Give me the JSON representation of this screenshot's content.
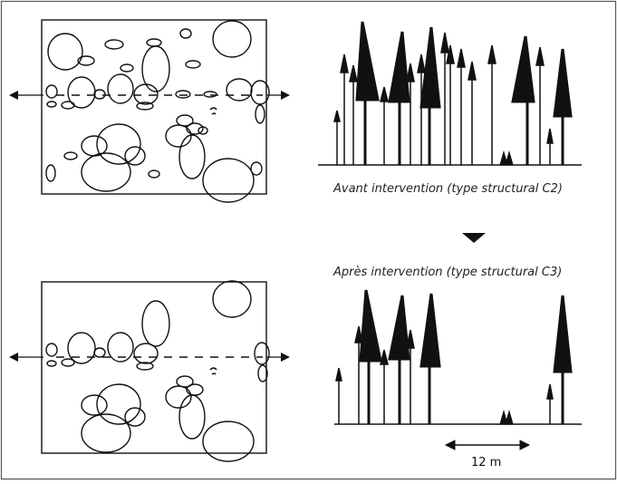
{
  "captions": {
    "before": "Avant intervention (type structural C2)",
    "after": "Après intervention (type structural C3)"
  },
  "scale": {
    "label": "12 m"
  },
  "colors": {
    "ink": "#111111",
    "border": "#444444",
    "background": "#ffffff"
  }
}
